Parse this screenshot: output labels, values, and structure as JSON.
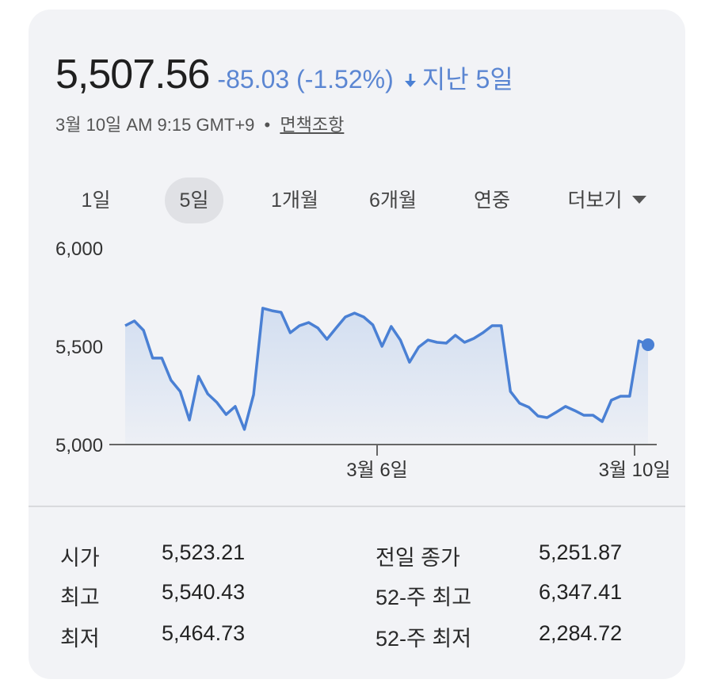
{
  "header": {
    "price": "5,507.56",
    "change": "-85.03 (-1.52%)",
    "direction_icon": "arrow-down-icon",
    "period_label": "지난 5일",
    "timestamp": "3월 10일 AM 9:15 GMT+9",
    "separator": "•",
    "disclaimer": "면책조항"
  },
  "tabs": [
    {
      "label": "1일",
      "active": false
    },
    {
      "label": "5일",
      "active": true
    },
    {
      "label": "1개월",
      "active": false
    },
    {
      "label": "6개월",
      "active": false
    },
    {
      "label": "연중",
      "active": false
    },
    {
      "label": "더보기",
      "active": false,
      "icon": "caret-down-icon"
    }
  ],
  "colors": {
    "accent": "#4a80d4",
    "change": "#5b86d2",
    "card_bg": "#f2f3f6",
    "fill_top": "#cfdcf0"
  },
  "stats": {
    "left": [
      {
        "label": "시가",
        "value": "5,523.21"
      },
      {
        "label": "최고",
        "value": "5,540.43"
      },
      {
        "label": "최저",
        "value": "5,464.73"
      }
    ],
    "right": [
      {
        "label": "전일 종가",
        "value": "5,251.87"
      },
      {
        "label": "52-주 최고",
        "value": "6,347.41"
      },
      {
        "label": "52-주 최저",
        "value": "2,284.72"
      }
    ]
  },
  "chart_data": {
    "type": "area",
    "title": "",
    "xlabel": "",
    "ylabel": "",
    "ylim": [
      5000,
      6000
    ],
    "yticks": [
      5000,
      5500,
      6000
    ],
    "ytick_labels": [
      "5,000",
      "5,500",
      "6,000"
    ],
    "xtick_labels": [
      "3월 6일",
      "3월 10일"
    ],
    "grid": false,
    "legend": null,
    "series": [
      {
        "name": "price",
        "values": [
          5605,
          5629,
          5581,
          5440,
          5440,
          5327,
          5270,
          5125,
          5347,
          5258,
          5214,
          5153,
          5194,
          5077,
          5254,
          5694,
          5681,
          5673,
          5569,
          5605,
          5621,
          5593,
          5536,
          5593,
          5649,
          5669,
          5649,
          5609,
          5500,
          5601,
          5532,
          5419,
          5496,
          5532,
          5520,
          5516,
          5556,
          5520,
          5540,
          5569,
          5605,
          5605,
          5270,
          5210,
          5190,
          5145,
          5137,
          5165,
          5194,
          5173,
          5149,
          5149,
          5117,
          5226,
          5246,
          5246,
          5528,
          5508
        ]
      }
    ],
    "last_point_marker": true
  }
}
